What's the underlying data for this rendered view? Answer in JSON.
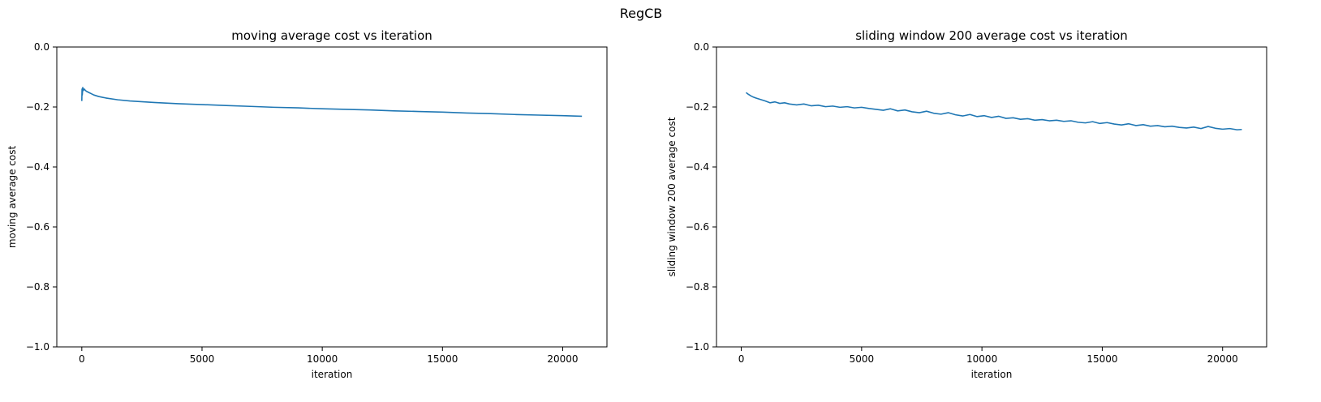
{
  "figure": {
    "suptitle": "RegCB",
    "line_color": "#1f77b4"
  },
  "chart_data": [
    {
      "type": "line",
      "title": "moving average cost vs iteration",
      "xlabel": "iteration",
      "ylabel": "moving average cost",
      "xlim": [
        -1040,
        21840
      ],
      "ylim": [
        -1.0,
        0.0
      ],
      "xticks": [
        0,
        5000,
        10000,
        15000,
        20000
      ],
      "xtick_labels": [
        "0",
        "5000",
        "10000",
        "15000",
        "20000"
      ],
      "yticks": [
        -1.0,
        -0.8,
        -0.6,
        -0.4,
        -0.2,
        0.0
      ],
      "ytick_labels": [
        "−1.0",
        "−0.8",
        "−0.6",
        "−0.4",
        "−0.2",
        "0.0"
      ],
      "grid": false,
      "series": [
        {
          "x": [
            0,
            10,
            20,
            40,
            60,
            100,
            150,
            200,
            300,
            400,
            500,
            700,
            1000,
            1500,
            2000,
            3000,
            4000,
            5000,
            6000,
            7000,
            8000,
            9000,
            10000,
            11000,
            12000,
            13000,
            14000,
            15000,
            16000,
            17000,
            18000,
            19000,
            20000,
            20800
          ],
          "y": [
            -0.18,
            -0.14,
            -0.16,
            -0.135,
            -0.145,
            -0.14,
            -0.145,
            -0.148,
            -0.152,
            -0.156,
            -0.16,
            -0.165,
            -0.17,
            -0.176,
            -0.18,
            -0.185,
            -0.189,
            -0.192,
            -0.195,
            -0.198,
            -0.201,
            -0.203,
            -0.206,
            -0.208,
            -0.21,
            -0.213,
            -0.215,
            -0.217,
            -0.22,
            -0.222,
            -0.225,
            -0.227,
            -0.229,
            -0.231
          ]
        }
      ]
    },
    {
      "type": "line",
      "title": "sliding window 200 average cost vs iteration",
      "xlabel": "iteration",
      "ylabel": "sliding window 200 average cost",
      "xlim": [
        -1030,
        21830
      ],
      "ylim": [
        -1.0,
        0.0
      ],
      "xticks": [
        0,
        5000,
        10000,
        15000,
        20000
      ],
      "xtick_labels": [
        "0",
        "5000",
        "10000",
        "15000",
        "20000"
      ],
      "yticks": [
        -1.0,
        -0.8,
        -0.6,
        -0.4,
        -0.2,
        0.0
      ],
      "ytick_labels": [
        "−1.0",
        "−0.8",
        "−0.6",
        "−0.4",
        "−0.2",
        "0.0"
      ],
      "grid": false,
      "series": [
        {
          "x": [
            200,
            300,
            400,
            500,
            600,
            800,
            1000,
            1200,
            1400,
            1600,
            1800,
            2000,
            2300,
            2600,
            2900,
            3200,
            3500,
            3800,
            4100,
            4400,
            4700,
            5000,
            5300,
            5600,
            5900,
            6200,
            6500,
            6800,
            7100,
            7400,
            7700,
            8000,
            8300,
            8600,
            8900,
            9200,
            9500,
            9800,
            10100,
            10400,
            10700,
            11000,
            11300,
            11600,
            11900,
            12200,
            12500,
            12800,
            13100,
            13400,
            13700,
            14000,
            14300,
            14600,
            14900,
            15200,
            15500,
            15800,
            16100,
            16400,
            16700,
            17000,
            17300,
            17600,
            17900,
            18200,
            18500,
            18800,
            19100,
            19400,
            19700,
            20000,
            20300,
            20600,
            20800
          ],
          "y": [
            -0.152,
            -0.158,
            -0.163,
            -0.167,
            -0.17,
            -0.175,
            -0.18,
            -0.186,
            -0.183,
            -0.188,
            -0.186,
            -0.19,
            -0.193,
            -0.19,
            -0.196,
            -0.194,
            -0.199,
            -0.197,
            -0.201,
            -0.199,
            -0.203,
            -0.201,
            -0.205,
            -0.208,
            -0.211,
            -0.206,
            -0.213,
            -0.21,
            -0.216,
            -0.219,
            -0.214,
            -0.221,
            -0.224,
            -0.219,
            -0.226,
            -0.23,
            -0.225,
            -0.232,
            -0.229,
            -0.235,
            -0.231,
            -0.238,
            -0.236,
            -0.241,
            -0.239,
            -0.244,
            -0.242,
            -0.246,
            -0.244,
            -0.248,
            -0.246,
            -0.251,
            -0.253,
            -0.249,
            -0.255,
            -0.252,
            -0.257,
            -0.26,
            -0.256,
            -0.262,
            -0.259,
            -0.264,
            -0.262,
            -0.266,
            -0.264,
            -0.268,
            -0.27,
            -0.267,
            -0.272,
            -0.265,
            -0.271,
            -0.274,
            -0.272,
            -0.276,
            -0.275
          ]
        }
      ]
    }
  ]
}
